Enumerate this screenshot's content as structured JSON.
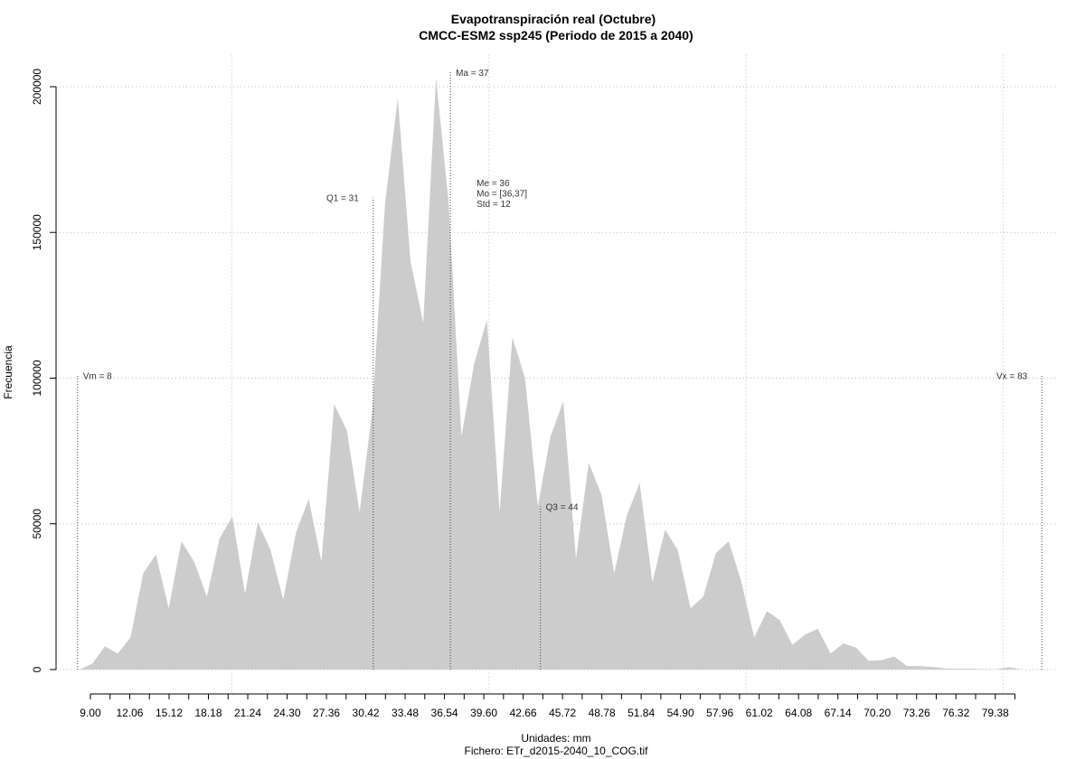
{
  "chart_data": {
    "type": "area",
    "title": "Evapotranspiración real (Octubre)",
    "subtitle": "CMCC-ESM2 ssp245 (Periodo de 2015 a 2040)",
    "x_label": "Unidades: mm",
    "y_label": "Frecuencia",
    "caption": "Fichero: ETr_d2015-2040_10_COG.tif",
    "color": "#cccccc",
    "x": [
      8.16,
      9.15,
      10.14,
      11.13,
      12.12,
      13.11,
      14.1,
      15.09,
      16.08,
      17.07,
      18.06,
      19.05,
      20.04,
      21.03,
      22.02,
      23.01,
      24,
      24.99,
      25.98,
      26.97,
      27.96,
      28.95,
      29.94,
      30.93,
      31.92,
      32.91,
      33.9,
      34.89,
      35.88,
      36.87,
      37.86,
      38.85,
      39.84,
      40.83,
      41.82,
      42.81,
      43.8,
      44.79,
      45.78,
      46.77,
      47.76,
      48.75,
      49.74,
      50.73,
      51.72,
      52.71,
      53.7,
      54.69,
      55.68,
      56.67,
      57.66,
      58.65,
      59.64,
      60.63,
      61.62,
      62.61,
      63.6,
      64.59,
      65.58,
      66.57,
      67.56,
      68.55,
      69.54,
      70.53,
      71.52,
      72.51,
      73.5,
      74.49,
      75.48,
      76.47,
      77.46,
      78.45,
      79.44,
      80.43,
      81.42
    ],
    "values": [
      0,
      2000,
      8000,
      5500,
      11000,
      33000,
      39500,
      21000,
      44000,
      37000,
      25000,
      45000,
      52500,
      26000,
      50500,
      41000,
      24000,
      47000,
      58500,
      37000,
      91000,
      82000,
      54000,
      89000,
      160000,
      196000,
      140000,
      119000,
      203000,
      160000,
      80000,
      105000,
      120000,
      54000,
      114000,
      100000,
      56000,
      80000,
      92000,
      38000,
      71000,
      60000,
      33000,
      53000,
      64000,
      30000,
      48000,
      41000,
      21000,
      25000,
      40000,
      44000,
      30000,
      11000,
      20000,
      17000,
      8500,
      12000,
      14000,
      5500,
      9000,
      7500,
      3000,
      3200,
      4500,
      1200,
      1200,
      900,
      400,
      300,
      300,
      100,
      100,
      800,
      0
    ],
    "xlim": [
      6.33,
      84.25
    ],
    "ylim": [
      -8000,
      211000
    ],
    "xticks": [
      {
        "value": 9,
        "label": "9.00"
      },
      12.06,
      15.12,
      18.18,
      21.24,
      {
        "value": 24.3,
        "label": "24.30"
      },
      27.36,
      30.42,
      33.48,
      36.54,
      {
        "value": 39.6,
        "label": "39.60"
      },
      42.66,
      45.72,
      48.78,
      51.84,
      {
        "value": 54.9,
        "label": "54.90"
      },
      57.96,
      61.02,
      64.08,
      67.14,
      {
        "value": 70.2,
        "label": "70.20"
      },
      73.26,
      76.32,
      79.38
    ],
    "xminor_ticks": [
      10.53,
      13.59,
      16.65,
      19.71,
      22.77,
      25.83,
      28.89,
      31.95,
      35.01,
      38.07,
      41.13,
      44.19,
      47.25,
      50.31,
      53.37,
      56.43,
      59.49,
      62.55,
      65.61,
      68.67,
      71.73,
      74.79,
      77.85,
      80.91
    ],
    "xgrid": [
      20,
      40,
      60,
      80
    ],
    "yticks": [
      0,
      50000,
      100000,
      150000,
      200000
    ],
    "grid": true,
    "vlines": [
      {
        "label": "Vm = 8",
        "x": 8,
        "top": 101000,
        "side": "right"
      },
      {
        "label": "Q1 = 31",
        "x": 31,
        "top": 162000,
        "side": "left"
      },
      {
        "label": "Ma = 37",
        "x": 37,
        "top": 205000,
        "side": "right"
      },
      {
        "label": "Q3 = 44",
        "x": 44,
        "top": 56000,
        "side": "right"
      },
      {
        "label": "Vx = 83",
        "x": 83,
        "top": 101000,
        "side": "left"
      }
    ],
    "stats": [
      "Me = 36",
      "Mo = [36,37]",
      "Std = 12"
    ]
  }
}
